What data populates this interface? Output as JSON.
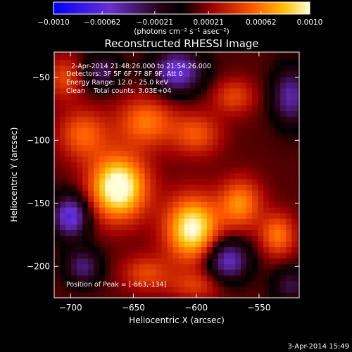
{
  "colorbar": {
    "ticks": [
      "−0.0010",
      "−0.00062",
      "−0.00021",
      "0.00021",
      "0.00062",
      "0.0010"
    ],
    "tick_values": [
      -0.001,
      -0.00062,
      -0.00021,
      0.00021,
      0.00062,
      0.001
    ],
    "range": [
      -0.001,
      0.001
    ],
    "units_label": "(photons cm⁻² s⁻¹ asec⁻²)"
  },
  "chart_data": {
    "type": "heatmap",
    "title": "Reconstructed RHESSI Image",
    "xlabel": "Heliocentric X (arcsec)",
    "ylabel": "Heliocentric Y (arcsec)",
    "xlim": [
      -713,
      -518
    ],
    "ylim": [
      -225,
      -30
    ],
    "x_ticks": [
      -700,
      -650,
      -600,
      -550
    ],
    "y_ticks": [
      -50,
      -100,
      -150,
      -200
    ],
    "x_tick_labels": [
      "−700",
      "−650",
      "−600",
      "−550"
    ],
    "y_tick_labels": [
      "−50",
      "−100",
      "−150",
      "−200"
    ],
    "annotations": [
      "2-Apr-2014 21:48:26.000 to 21:54:26.000",
      "Detectors: 3F 5F 6F 7F 8F 9F, Att 0",
      "Energy Range: 12.0 - 25.0 keV",
      "Clean    Total counts: 3.03E+04"
    ],
    "peak_label": "Position of Peak = [-663,-134]",
    "peak_position": [
      -663,
      -134
    ],
    "blobs": [
      {
        "x": -662,
        "y": -137,
        "value": 0.001,
        "sx": 16,
        "sy": 18
      },
      {
        "x": -603,
        "y": -170,
        "value": 0.0009,
        "sx": 15,
        "sy": 18
      },
      {
        "x": -565,
        "y": -150,
        "value": 0.00055,
        "sx": 12,
        "sy": 14
      },
      {
        "x": -640,
        "y": -85,
        "value": 0.0005,
        "sx": 16,
        "sy": 14
      },
      {
        "x": -535,
        "y": -175,
        "value": 0.0005,
        "sx": 10,
        "sy": 12
      },
      {
        "x": -690,
        "y": -95,
        "value": 0.00045,
        "sx": 14,
        "sy": 14
      },
      {
        "x": -600,
        "y": -95,
        "value": 0.0004,
        "sx": 14,
        "sy": 12
      },
      {
        "x": -570,
        "y": -65,
        "value": 0.00035,
        "sx": 12,
        "sy": 10
      },
      {
        "x": -640,
        "y": -205,
        "value": 0.00035,
        "sx": 14,
        "sy": 10
      },
      {
        "x": -705,
        "y": -50,
        "value": 0.00035,
        "sx": 10,
        "sy": 12
      },
      {
        "x": -600,
        "y": -215,
        "value": 0.0003,
        "sx": 16,
        "sy": 8
      },
      {
        "x": -700,
        "y": -160,
        "value": -0.0008,
        "sx": 10,
        "sy": 12
      },
      {
        "x": -615,
        "y": -45,
        "value": -0.00075,
        "sx": 14,
        "sy": 12
      },
      {
        "x": -575,
        "y": -195,
        "value": -0.0007,
        "sx": 12,
        "sy": 12
      },
      {
        "x": -525,
        "y": -65,
        "value": -0.0006,
        "sx": 10,
        "sy": 16
      },
      {
        "x": -690,
        "y": -200,
        "value": -0.0005,
        "sx": 10,
        "sy": 10
      },
      {
        "x": -675,
        "y": -45,
        "value": -0.00045,
        "sx": 10,
        "sy": 10
      },
      {
        "x": -525,
        "y": -215,
        "value": -0.0004,
        "sx": 10,
        "sy": 10
      }
    ]
  },
  "footer_timestamp": "3-Apr-2014 15:49"
}
